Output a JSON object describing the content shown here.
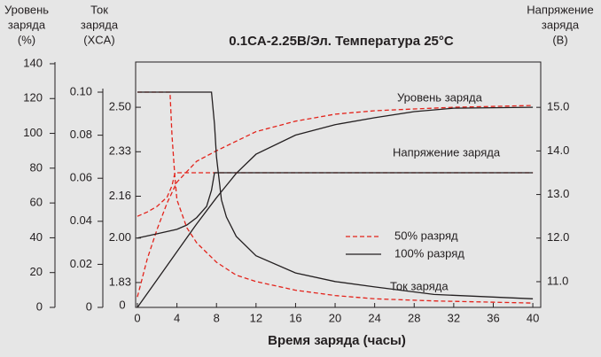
{
  "chart_data": {
    "type": "line",
    "title": "0.1CA-2.25В/Эл.  Температура 25°C",
    "x_label": "Время заряда (часы)",
    "y_label": [
      "Уровень",
      "заряда",
      "(%)"
    ],
    "y_current_label": [
      "Ток",
      "заряда",
      "(XCA)"
    ],
    "y2_label": [
      "Напряжение",
      "заряда",
      "(В)"
    ],
    "origin_label": "0",
    "xlim": [
      -0.18,
      40.8
    ],
    "xticks": [
      0,
      4,
      8,
      12,
      16,
      20,
      24,
      28,
      32,
      36,
      40
    ],
    "ylim": [
      0,
      141
    ],
    "yticks": [
      0,
      20,
      40,
      60,
      80,
      100,
      120,
      140
    ],
    "y_current_lim": [
      0,
      0.114
    ],
    "y_current_ticks": [
      0,
      0.02,
      0.04,
      0.06,
      {
        "value": 0.08,
        "label": "0.08"
      },
      {
        "value": 0.1,
        "label": "0.10"
      }
    ],
    "y_cell_lim": [
      1.735,
      2.673
    ],
    "y_cell_ticks": [
      1.83,
      {
        "value": 2.0,
        "label": "2.00"
      },
      2.16,
      2.33,
      {
        "value": 2.5,
        "label": "2.50"
      }
    ],
    "y2lim": [
      10.41,
      16.04
    ],
    "y2ticks": [
      {
        "value": 11,
        "label": "11.0"
      },
      {
        "value": 12,
        "label": "12.0"
      },
      {
        "value": 13,
        "label": "13.0"
      },
      {
        "value": 14,
        "label": "14.0"
      },
      {
        "value": 15,
        "label": "15.0"
      }
    ],
    "legend": [
      {
        "name": "50% разряд",
        "color": "#e3231b",
        "dashed": true
      },
      {
        "name": "100% разряд",
        "color": "#231f20",
        "dashed": false
      }
    ],
    "annotations": [
      "Уровень заряда",
      "Напряжение заряда",
      "Ток заряда"
    ],
    "series": [
      {
        "legend_entry": 0,
        "axis": "y",
        "x": [
          0,
          1,
          2,
          3,
          4,
          6,
          8,
          12,
          16,
          20,
          24,
          28,
          32,
          40
        ],
        "values": [
          6,
          28,
          45,
          60,
          72,
          84,
          90,
          101,
          107,
          111,
          113,
          114,
          115,
          116
        ]
      },
      {
        "legend_entry": 1,
        "axis": "y",
        "x": [
          0,
          2,
          4,
          6,
          8,
          10,
          12,
          16,
          20,
          24,
          28,
          32,
          40
        ],
        "values": [
          0,
          16,
          32,
          48,
          63,
          77,
          88,
          99,
          105,
          109,
          112.5,
          114.5,
          115
        ]
      },
      {
        "legend_entry": 0,
        "axis": "y2",
        "x": [
          0,
          1,
          2,
          3,
          3.5,
          3.8,
          40
        ],
        "values": [
          12.5,
          12.6,
          12.73,
          12.94,
          13.2,
          13.5,
          13.5
        ]
      },
      {
        "legend_entry": 1,
        "axis": "y2",
        "x": [
          0,
          2,
          4,
          5,
          6,
          7,
          7.5,
          7.8,
          40
        ],
        "values": [
          12.0,
          12.1,
          12.2,
          12.3,
          12.47,
          12.73,
          13.1,
          13.5,
          13.5
        ]
      },
      {
        "legend_entry": 0,
        "axis": "y_current",
        "x": [
          0,
          3.3,
          3.5,
          3.8,
          4,
          5,
          6,
          8,
          10,
          12,
          16,
          20,
          24,
          30,
          40
        ],
        "values": [
          0.1,
          0.1,
          0.08,
          0.06,
          0.05,
          0.037,
          0.03,
          0.021,
          0.015,
          0.012,
          0.008,
          0.0055,
          0.004,
          0.003,
          0.002
        ]
      },
      {
        "legend_entry": 1,
        "axis": "y_current",
        "x": [
          0,
          7.5,
          7.8,
          8,
          8.5,
          9,
          10,
          12,
          16,
          20,
          24,
          30,
          40
        ],
        "values": [
          0.1,
          0.1,
          0.085,
          0.07,
          0.05,
          0.042,
          0.033,
          0.024,
          0.016,
          0.012,
          0.0095,
          0.006,
          0.004
        ]
      }
    ]
  }
}
